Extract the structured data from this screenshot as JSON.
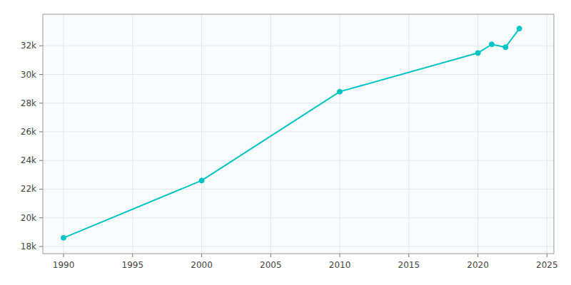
{
  "chart_data": {
    "type": "line",
    "x": [
      1990,
      2000,
      2010,
      2020,
      2021,
      2022,
      2023
    ],
    "values": [
      18600,
      22600,
      28800,
      31500,
      32100,
      31900,
      33200
    ],
    "color": "#00c4c4",
    "marker": "circle",
    "grid": true,
    "xlim": [
      1988.5,
      2025.5
    ],
    "ylim": [
      17500,
      34200
    ],
    "xticks": [
      1990,
      1995,
      2000,
      2005,
      2010,
      2015,
      2020,
      2025
    ],
    "yticks": [
      {
        "value": 18000,
        "label": "18k"
      },
      {
        "value": 20000,
        "label": "20k"
      },
      {
        "value": 22000,
        "label": "22k"
      },
      {
        "value": 24000,
        "label": "24k"
      },
      {
        "value": 26000,
        "label": "26k"
      },
      {
        "value": 28000,
        "label": "28k"
      },
      {
        "value": 30000,
        "label": "30k"
      },
      {
        "value": 32000,
        "label": "32k"
      }
    ]
  }
}
